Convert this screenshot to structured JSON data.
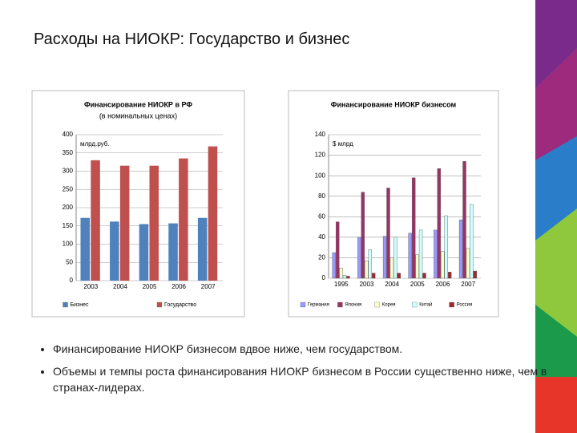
{
  "title": "Расходы на НИОКР: Государство и бизнес",
  "bullets": [
    "Финансирование НИОКР бизнесом вдвое ниже, чем государством.",
    "Объемы и темпы роста финансирования НИОКР бизнесом в России существенно ниже, чем в странах-лидерах."
  ],
  "chart_data": [
    {
      "type": "bar",
      "title": "Финансирование НИОКР в РФ",
      "subtitle": "(в номинальных ценах)",
      "annotation": "млрд.руб.",
      "categories": [
        "2003",
        "2004",
        "2005",
        "2006",
        "2007"
      ],
      "series": [
        {
          "name": "Бизнес",
          "color": "#4f81bd",
          "values": [
            172,
            162,
            155,
            157,
            172
          ]
        },
        {
          "name": "Государство",
          "color": "#c0504d",
          "values": [
            330,
            315,
            315,
            335,
            368
          ]
        }
      ],
      "ylim": [
        0,
        400
      ],
      "yticks": [
        0,
        50,
        100,
        150,
        200,
        250,
        300,
        350,
        400
      ],
      "grid": true,
      "legend": "bottom"
    },
    {
      "type": "bar",
      "title": "Финансирование НИОКР бизнесом",
      "annotation": "$ млрд",
      "categories": [
        "1995",
        "2003",
        "2004",
        "2005",
        "2006",
        "2007"
      ],
      "series": [
        {
          "name": "Германия",
          "color": "#9999ff",
          "values": [
            25,
            40,
            41,
            44,
            47,
            57
          ]
        },
        {
          "name": "Япония",
          "color": "#993366",
          "values": [
            55,
            84,
            88,
            98,
            107,
            114
          ]
        },
        {
          "name": "Корея",
          "color": "#ffffcc",
          "values": [
            10,
            17,
            20,
            23,
            26,
            29
          ]
        },
        {
          "name": "Китай",
          "color": "#ccffff",
          "values": [
            3,
            28,
            40,
            47,
            61,
            72
          ]
        },
        {
          "name": "Россия",
          "color": "#a0282a",
          "values": [
            2,
            5,
            5,
            5,
            6,
            7
          ]
        }
      ],
      "ylim": [
        0,
        140
      ],
      "yticks": [
        0,
        20,
        40,
        60,
        80,
        100,
        120,
        140
      ],
      "grid": true,
      "legend": "bottom"
    }
  ]
}
